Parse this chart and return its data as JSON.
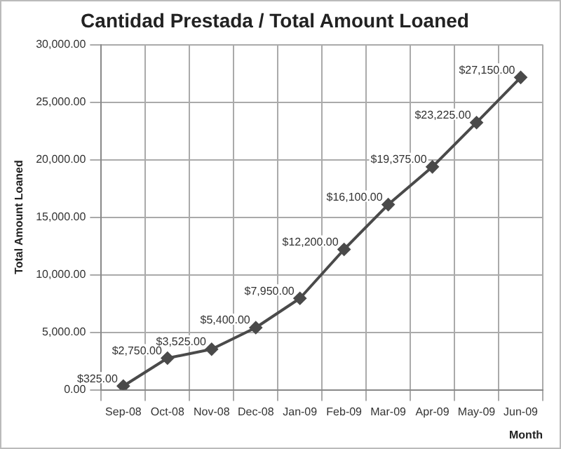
{
  "chart_data": {
    "type": "line",
    "title": "Cantidad Prestada / Total Amount Loaned",
    "xlabel": "Month",
    "ylabel": "Total Amount Loaned",
    "categories": [
      "Sep-08",
      "Oct-08",
      "Nov-08",
      "Dec-08",
      "Jan-09",
      "Feb-09",
      "Mar-09",
      "Apr-09",
      "May-09",
      "Jun-09"
    ],
    "series": [
      {
        "color": "#4a4a4a",
        "values": [
          325,
          2750,
          3525,
          5400,
          7950,
          12200,
          16100,
          19375,
          23225,
          27150
        ],
        "value_labels": [
          "$325.00",
          "$2,750.00",
          "$3,525.00",
          "$5,400.00",
          "$7,950.00",
          "$12,200.00",
          "$16,100.00",
          "$19,375.00",
          "$23,225.00",
          "$27,150.00"
        ]
      }
    ],
    "ylim": [
      0,
      30000
    ],
    "yticks": [
      {
        "value": 0,
        "label": "0.00"
      },
      {
        "value": 5000,
        "label": "5,000.00"
      },
      {
        "value": 10000,
        "label": "10,000.00"
      },
      {
        "value": 15000,
        "label": "15,000.00"
      },
      {
        "value": 20000,
        "label": "20,000.00"
      },
      {
        "value": 25000,
        "label": "25,000.00"
      },
      {
        "value": 30000,
        "label": "30,000.00"
      }
    ],
    "grid": true,
    "legend": false,
    "marker": "diamond",
    "line_style": "solid"
  }
}
